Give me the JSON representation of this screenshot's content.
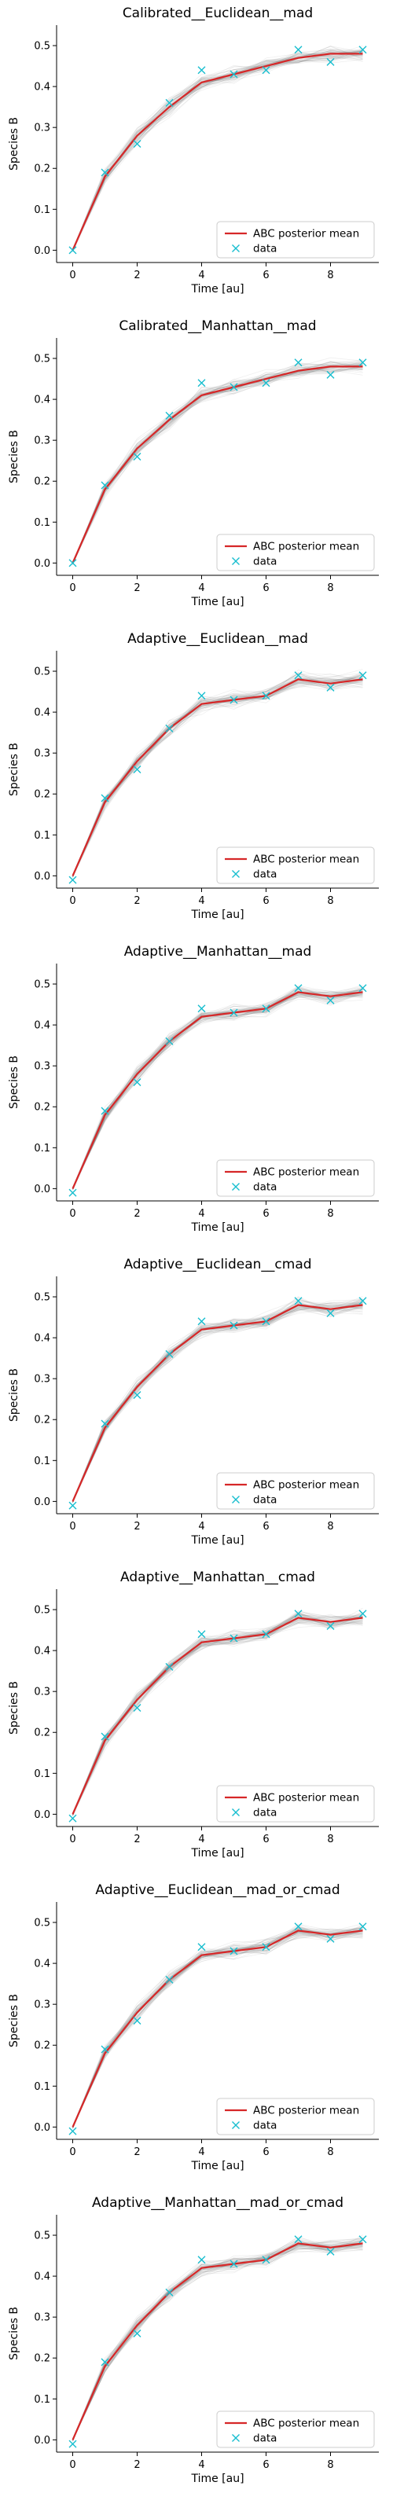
{
  "colors": {
    "posterior_mean": "#d62728",
    "data": "#17becf",
    "samples": "#7f7f7f",
    "legend_border": "#cccccc"
  },
  "chart_data": [
    {
      "type": "line",
      "title": "Calibrated__Euclidean__mad",
      "xlabel": "Time [au]",
      "ylabel": "Species B",
      "xlim": [
        -0.5,
        9.5
      ],
      "ylim": [
        -0.03,
        0.55
      ],
      "xticks": [
        0,
        2,
        4,
        6,
        8
      ],
      "yticks": [
        0.0,
        0.1,
        0.2,
        0.3,
        0.4,
        0.5
      ],
      "legend": {
        "position": "lower right",
        "entries": [
          "ABC posterior mean",
          "data"
        ]
      },
      "x": [
        0,
        1,
        2,
        3,
        4,
        5,
        6,
        7,
        8,
        9
      ],
      "series": [
        {
          "name": "ABC posterior mean",
          "style": "line",
          "values": [
            0.0,
            0.18,
            0.28,
            0.35,
            0.41,
            0.43,
            0.45,
            0.47,
            0.48,
            0.48
          ]
        },
        {
          "name": "data",
          "style": "marker-x",
          "values": [
            0.0,
            0.19,
            0.26,
            0.36,
            0.44,
            0.43,
            0.44,
            0.49,
            0.46,
            0.49
          ]
        }
      ]
    },
    {
      "type": "line",
      "title": "Calibrated__Manhattan__mad",
      "xlabel": "Time [au]",
      "ylabel": "Species B",
      "xlim": [
        -0.5,
        9.5
      ],
      "ylim": [
        -0.03,
        0.55
      ],
      "xticks": [
        0,
        2,
        4,
        6,
        8
      ],
      "yticks": [
        0.0,
        0.1,
        0.2,
        0.3,
        0.4,
        0.5
      ],
      "legend": {
        "position": "lower right",
        "entries": [
          "ABC posterior mean",
          "data"
        ]
      },
      "x": [
        0,
        1,
        2,
        3,
        4,
        5,
        6,
        7,
        8,
        9
      ],
      "series": [
        {
          "name": "ABC posterior mean",
          "style": "line",
          "values": [
            0.0,
            0.18,
            0.28,
            0.35,
            0.41,
            0.43,
            0.45,
            0.47,
            0.48,
            0.48
          ]
        },
        {
          "name": "data",
          "style": "marker-x",
          "values": [
            0.0,
            0.19,
            0.26,
            0.36,
            0.44,
            0.43,
            0.44,
            0.49,
            0.46,
            0.49
          ]
        }
      ]
    },
    {
      "type": "line",
      "title": "Adaptive__Euclidean__mad",
      "xlabel": "Time [au]",
      "ylabel": "Species B",
      "xlim": [
        -0.5,
        9.5
      ],
      "ylim": [
        -0.03,
        0.55
      ],
      "xticks": [
        0,
        2,
        4,
        6,
        8
      ],
      "yticks": [
        0.0,
        0.1,
        0.2,
        0.3,
        0.4,
        0.5
      ],
      "legend": {
        "position": "lower right",
        "entries": [
          "ABC posterior mean",
          "data"
        ]
      },
      "x": [
        0,
        1,
        2,
        3,
        4,
        5,
        6,
        7,
        8,
        9
      ],
      "series": [
        {
          "name": "ABC posterior mean",
          "style": "line",
          "values": [
            0.0,
            0.18,
            0.28,
            0.36,
            0.42,
            0.43,
            0.44,
            0.48,
            0.47,
            0.48
          ]
        },
        {
          "name": "data",
          "style": "marker-x",
          "values": [
            -0.01,
            0.19,
            0.26,
            0.36,
            0.44,
            0.43,
            0.44,
            0.49,
            0.46,
            0.49
          ]
        }
      ]
    },
    {
      "type": "line",
      "title": "Adaptive__Manhattan__mad",
      "xlabel": "Time [au]",
      "ylabel": "Species B",
      "xlim": [
        -0.5,
        9.5
      ],
      "ylim": [
        -0.03,
        0.55
      ],
      "xticks": [
        0,
        2,
        4,
        6,
        8
      ],
      "yticks": [
        0.0,
        0.1,
        0.2,
        0.3,
        0.4,
        0.5
      ],
      "legend": {
        "position": "lower right",
        "entries": [
          "ABC posterior mean",
          "data"
        ]
      },
      "x": [
        0,
        1,
        2,
        3,
        4,
        5,
        6,
        7,
        8,
        9
      ],
      "series": [
        {
          "name": "ABC posterior mean",
          "style": "line",
          "values": [
            0.0,
            0.18,
            0.28,
            0.36,
            0.42,
            0.43,
            0.44,
            0.48,
            0.47,
            0.48
          ]
        },
        {
          "name": "data",
          "style": "marker-x",
          "values": [
            -0.01,
            0.19,
            0.26,
            0.36,
            0.44,
            0.43,
            0.44,
            0.49,
            0.46,
            0.49
          ]
        }
      ]
    },
    {
      "type": "line",
      "title": "Adaptive__Euclidean__cmad",
      "xlabel": "Time [au]",
      "ylabel": "Species B",
      "xlim": [
        -0.5,
        9.5
      ],
      "ylim": [
        -0.03,
        0.55
      ],
      "xticks": [
        0,
        2,
        4,
        6,
        8
      ],
      "yticks": [
        0.0,
        0.1,
        0.2,
        0.3,
        0.4,
        0.5
      ],
      "legend": {
        "position": "lower right",
        "entries": [
          "ABC posterior mean",
          "data"
        ]
      },
      "x": [
        0,
        1,
        2,
        3,
        4,
        5,
        6,
        7,
        8,
        9
      ],
      "series": [
        {
          "name": "ABC posterior mean",
          "style": "line",
          "values": [
            0.0,
            0.18,
            0.28,
            0.36,
            0.42,
            0.43,
            0.44,
            0.48,
            0.47,
            0.48
          ]
        },
        {
          "name": "data",
          "style": "marker-x",
          "values": [
            -0.01,
            0.19,
            0.26,
            0.36,
            0.44,
            0.43,
            0.44,
            0.49,
            0.46,
            0.49
          ]
        }
      ]
    },
    {
      "type": "line",
      "title": "Adaptive__Manhattan__cmad",
      "xlabel": "Time [au]",
      "ylabel": "Species B",
      "xlim": [
        -0.5,
        9.5
      ],
      "ylim": [
        -0.03,
        0.55
      ],
      "xticks": [
        0,
        2,
        4,
        6,
        8
      ],
      "yticks": [
        0.0,
        0.1,
        0.2,
        0.3,
        0.4,
        0.5
      ],
      "legend": {
        "position": "lower right",
        "entries": [
          "ABC posterior mean",
          "data"
        ]
      },
      "x": [
        0,
        1,
        2,
        3,
        4,
        5,
        6,
        7,
        8,
        9
      ],
      "series": [
        {
          "name": "ABC posterior mean",
          "style": "line",
          "values": [
            0.0,
            0.18,
            0.28,
            0.36,
            0.42,
            0.43,
            0.44,
            0.48,
            0.47,
            0.48
          ]
        },
        {
          "name": "data",
          "style": "marker-x",
          "values": [
            -0.01,
            0.19,
            0.26,
            0.36,
            0.44,
            0.43,
            0.44,
            0.49,
            0.46,
            0.49
          ]
        }
      ]
    },
    {
      "type": "line",
      "title": "Adaptive__Euclidean__mad_or_cmad",
      "xlabel": "Time [au]",
      "ylabel": "Species B",
      "xlim": [
        -0.5,
        9.5
      ],
      "ylim": [
        -0.03,
        0.55
      ],
      "xticks": [
        0,
        2,
        4,
        6,
        8
      ],
      "yticks": [
        0.0,
        0.1,
        0.2,
        0.3,
        0.4,
        0.5
      ],
      "legend": {
        "position": "lower right",
        "entries": [
          "ABC posterior mean",
          "data"
        ]
      },
      "x": [
        0,
        1,
        2,
        3,
        4,
        5,
        6,
        7,
        8,
        9
      ],
      "series": [
        {
          "name": "ABC posterior mean",
          "style": "line",
          "values": [
            0.0,
            0.18,
            0.28,
            0.36,
            0.42,
            0.43,
            0.44,
            0.48,
            0.47,
            0.48
          ]
        },
        {
          "name": "data",
          "style": "marker-x",
          "values": [
            -0.01,
            0.19,
            0.26,
            0.36,
            0.44,
            0.43,
            0.44,
            0.49,
            0.46,
            0.49
          ]
        }
      ]
    },
    {
      "type": "line",
      "title": "Adaptive__Manhattan__mad_or_cmad",
      "xlabel": "Time [au]",
      "ylabel": "Species B",
      "xlim": [
        -0.5,
        9.5
      ],
      "ylim": [
        -0.03,
        0.55
      ],
      "xticks": [
        0,
        2,
        4,
        6,
        8
      ],
      "yticks": [
        0.0,
        0.1,
        0.2,
        0.3,
        0.4,
        0.5
      ],
      "legend": {
        "position": "lower right",
        "entries": [
          "ABC posterior mean",
          "data"
        ]
      },
      "x": [
        0,
        1,
        2,
        3,
        4,
        5,
        6,
        7,
        8,
        9
      ],
      "series": [
        {
          "name": "ABC posterior mean",
          "style": "line",
          "values": [
            0.0,
            0.18,
            0.28,
            0.36,
            0.42,
            0.43,
            0.44,
            0.48,
            0.47,
            0.48
          ]
        },
        {
          "name": "data",
          "style": "marker-x",
          "values": [
            -0.01,
            0.19,
            0.26,
            0.36,
            0.44,
            0.43,
            0.44,
            0.49,
            0.46,
            0.49
          ]
        }
      ]
    }
  ]
}
